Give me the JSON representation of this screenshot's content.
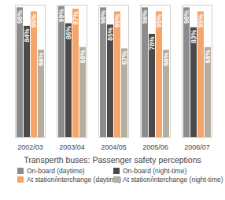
{
  "chart_data": {
    "type": "bar",
    "title": "Transperth buses: Passenger safety perceptions",
    "categories": [
      "2002/03",
      "2003/04",
      "2004/05",
      "2005/06",
      "2006/07"
    ],
    "series": [
      {
        "name": "On-board (daytime)",
        "color": "#8c8c8c",
        "values": [
          98,
          99,
          98,
          98,
          98
        ],
        "value_labels": [
          "98%",
          "99%",
          "98%",
          "98%",
          "98%"
        ]
      },
      {
        "name": "On-board (night-time)",
        "color": "#4a4a4a",
        "values": [
          84,
          86,
          85,
          78,
          83
        ],
        "value_labels": [
          "84%",
          "86%",
          "85%",
          "78%",
          "83%"
        ]
      },
      {
        "name": "At station/interchange (daytime)",
        "color": "#f5a46a",
        "values": [
          95,
          97,
          95,
          95,
          95
        ],
        "value_labels": [
          "95%",
          "97%",
          "95%",
          "95%",
          "95%"
        ]
      },
      {
        "name": "At station/interchange (night-time)",
        "color": "#b5ad9f",
        "values": [
          66,
          68,
          67,
          66,
          68
        ],
        "value_labels": [
          "66%",
          "68%",
          "67%",
          "66%",
          "68%"
        ]
      }
    ],
    "ylim": [
      0,
      100
    ],
    "data_labels": true,
    "tick_labels": "x"
  }
}
